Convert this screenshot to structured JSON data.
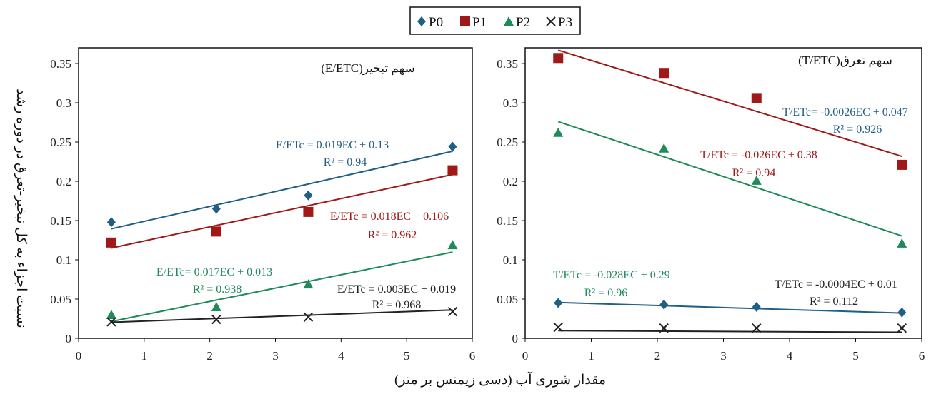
{
  "legend": [
    {
      "name": "P0",
      "symbol": "diamond"
    },
    {
      "name": "P1",
      "symbol": "square"
    },
    {
      "name": "P2",
      "symbol": "triangle"
    },
    {
      "name": "P3",
      "symbol": "cross"
    }
  ],
  "colors": {
    "P0": "#1f5f86",
    "P1": "#a01818",
    "P2": "#1f8a5a",
    "P3": "#222222"
  },
  "xlabel": "مقدار شوری آب (دسی زیمنس بر متر)",
  "ylabel": "نسبت اجزاء به کل تبخیر-تعرق در دوره رشد",
  "chart_data": [
    {
      "type": "scatter",
      "panel_label": "سهم تبخیر(E/ETC)",
      "xlim": [
        0,
        6
      ],
      "ylim": [
        0,
        0.37
      ],
      "xticks": [
        "0",
        "1",
        "2",
        "3",
        "4",
        "5",
        "6"
      ],
      "yticks": [
        "0",
        "0.05",
        "0.1",
        "0.15",
        "0.2",
        "0.25",
        "0.3",
        "0.35"
      ],
      "series": [
        {
          "name": "P0",
          "x": [
            0.5,
            2.1,
            3.5,
            5.7
          ],
          "y": [
            0.148,
            0.165,
            0.182,
            0.244
          ],
          "trend": [
            0.019,
            0.13
          ],
          "eq": "E/ETc = 0.019EC + 0.13",
          "r2": "R² = 0.94"
        },
        {
          "name": "P1",
          "x": [
            0.5,
            2.1,
            3.5,
            5.7
          ],
          "y": [
            0.122,
            0.136,
            0.161,
            0.214
          ],
          "trend": [
            0.018,
            0.106
          ],
          "eq": "E/ETc = 0.018EC + 0.106",
          "r2": "R² = 0.962"
        },
        {
          "name": "P2",
          "x": [
            0.5,
            2.1,
            3.5,
            5.7
          ],
          "y": [
            0.03,
            0.04,
            0.069,
            0.119
          ],
          "trend": [
            0.017,
            0.013
          ],
          "eq": "E/ETc= 0.017EC + 0.013",
          "r2": "R² = 0.938"
        },
        {
          "name": "P3",
          "x": [
            0.5,
            2.1,
            3.5,
            5.7
          ],
          "y": [
            0.021,
            0.024,
            0.027,
            0.034
          ],
          "trend": [
            0.003,
            0.019
          ],
          "eq": "E/ETc = 0.003EC + 0.019",
          "r2": "R² = 0.968"
        }
      ]
    },
    {
      "type": "scatter",
      "panel_label": "سهم تعرق(T/ETC)",
      "xlim": [
        0,
        6
      ],
      "ylim": [
        0,
        0.37
      ],
      "xticks": [
        "0",
        "1",
        "2",
        "3",
        "4",
        "5",
        "6"
      ],
      "yticks": [
        "0",
        "0.05",
        "0.1",
        "0.15",
        "0.2",
        "0.25",
        "0.3",
        "0.35"
      ],
      "series": [
        {
          "name": "P0",
          "x": [
            0.5,
            2.1,
            3.5,
            5.7
          ],
          "y": [
            0.045,
            0.043,
            0.04,
            0.033
          ],
          "trend": [
            -0.0026,
            0.047
          ],
          "eq": "T/ETc= -0.0026EC + 0.047",
          "r2": "R² = 0.926"
        },
        {
          "name": "P1",
          "x": [
            0.5,
            2.1,
            3.5,
            5.7
          ],
          "y": [
            0.357,
            0.338,
            0.306,
            0.221
          ],
          "trend": [
            -0.026,
            0.38
          ],
          "eq": "T/ETc = -0.026EC + 0.38",
          "r2": "R² = 0.94"
        },
        {
          "name": "P2",
          "x": [
            0.5,
            2.1,
            3.5,
            5.7
          ],
          "y": [
            0.262,
            0.242,
            0.201,
            0.121
          ],
          "trend": [
            -0.028,
            0.29
          ],
          "eq": "T/ETc = -0.028EC + 0.29",
          "r2": "R² = 0.96"
        },
        {
          "name": "P3",
          "x": [
            0.5,
            2.1,
            3.5,
            5.7
          ],
          "y": [
            0.014,
            0.013,
            0.013,
            0.013
          ],
          "trend": [
            -0.0004,
            0.01
          ],
          "eq": "T/ETc = -0.0004EC + 0.01",
          "r2": "R² = 0.112"
        }
      ]
    }
  ]
}
